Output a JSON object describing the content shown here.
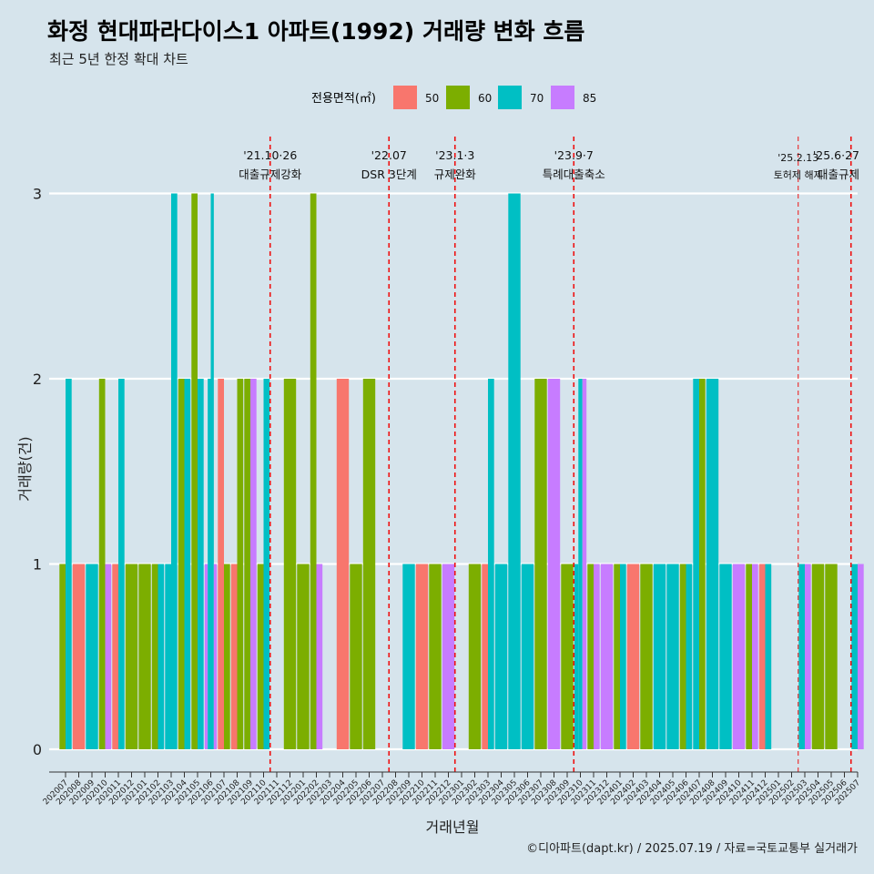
{
  "chart_data": {
    "type": "bar",
    "title": "화정 현대파라다이스1 아파트(1992) 거래량 변화 흐름",
    "subtitle": "최근 5년 한정 확대 차트",
    "xlabel": "거래년월",
    "ylabel": "거래량(건)",
    "caption": "©디아파트(dapt.kr) / 2025.07.19 / 자료=국토교통부 실거래가",
    "legend_title": "전용면적(㎡)",
    "legend_position": "top",
    "ylim": [
      0,
      3
    ],
    "y_ticks": [
      0,
      1,
      2,
      3
    ],
    "areas": [
      "50",
      "60",
      "70",
      "85"
    ],
    "colors": {
      "50": "#f8766d",
      "60": "#7cae00",
      "70": "#00bfc4",
      "85": "#c77cff"
    },
    "months": [
      "202007",
      "202008",
      "202009",
      "202010",
      "202011",
      "202012",
      "202101",
      "202102",
      "202103",
      "202104",
      "202105",
      "202106",
      "202107",
      "202108",
      "202109",
      "202110",
      "202111",
      "202112",
      "202201",
      "202202",
      "202203",
      "202204",
      "202205",
      "202206",
      "202207",
      "202208",
      "202209",
      "202210",
      "202211",
      "202212",
      "202301",
      "202302",
      "202303",
      "202304",
      "202305",
      "202306",
      "202307",
      "202308",
      "202309",
      "202310",
      "202311",
      "202312",
      "202401",
      "202402",
      "202403",
      "202404",
      "202405",
      "202406",
      "202407",
      "202408",
      "202409",
      "202410",
      "202411",
      "202412",
      "202501",
      "202502",
      "202503",
      "202504",
      "202505",
      "202506",
      "202507"
    ],
    "series": [
      {
        "month": "202007",
        "bars": [
          {
            "area": "60",
            "count": 1
          },
          {
            "area": "70",
            "count": 2
          }
        ]
      },
      {
        "month": "202008",
        "bars": [
          {
            "area": "50",
            "count": 1
          }
        ]
      },
      {
        "month": "202009",
        "bars": [
          {
            "area": "70",
            "count": 1
          }
        ]
      },
      {
        "month": "202010",
        "bars": [
          {
            "area": "60",
            "count": 2
          },
          {
            "area": "85",
            "count": 1
          }
        ]
      },
      {
        "month": "202011",
        "bars": [
          {
            "area": "50",
            "count": 1
          },
          {
            "area": "70",
            "count": 2
          }
        ]
      },
      {
        "month": "202012",
        "bars": [
          {
            "area": "60",
            "count": 1
          }
        ]
      },
      {
        "month": "202101",
        "bars": [
          {
            "area": "60",
            "count": 1
          }
        ]
      },
      {
        "month": "202102",
        "bars": [
          {
            "area": "60",
            "count": 1
          },
          {
            "area": "70",
            "count": 1
          }
        ]
      },
      {
        "month": "202103",
        "bars": [
          {
            "area": "70",
            "count": 1
          },
          {
            "area": "70",
            "count": 3
          }
        ]
      },
      {
        "month": "202104",
        "bars": [
          {
            "area": "60",
            "count": 2
          },
          {
            "area": "70",
            "count": 2
          }
        ]
      },
      {
        "month": "202105",
        "bars": [
          {
            "area": "60",
            "count": 3
          },
          {
            "area": "70",
            "count": 2
          }
        ]
      },
      {
        "month": "202106",
        "bars": [
          {
            "area": "85",
            "count": 1
          },
          {
            "area": "70",
            "count": 2
          },
          {
            "area": "70",
            "count": 3
          },
          {
            "area": "85",
            "count": 1
          }
        ]
      },
      {
        "month": "202107",
        "bars": [
          {
            "area": "50",
            "count": 2
          },
          {
            "area": "60",
            "count": 1
          }
        ]
      },
      {
        "month": "202108",
        "bars": [
          {
            "area": "50",
            "count": 1
          },
          {
            "area": "60",
            "count": 2
          }
        ]
      },
      {
        "month": "202109",
        "bars": [
          {
            "area": "60",
            "count": 2
          },
          {
            "area": "85",
            "count": 2
          }
        ]
      },
      {
        "month": "202110",
        "bars": [
          {
            "area": "60",
            "count": 1
          },
          {
            "area": "70",
            "count": 2
          }
        ]
      },
      {
        "month": "202111",
        "bars": []
      },
      {
        "month": "202112",
        "bars": [
          {
            "area": "60",
            "count": 2
          }
        ]
      },
      {
        "month": "202201",
        "bars": [
          {
            "area": "60",
            "count": 1
          }
        ]
      },
      {
        "month": "202202",
        "bars": [
          {
            "area": "60",
            "count": 3
          },
          {
            "area": "85",
            "count": 1
          }
        ]
      },
      {
        "month": "202203",
        "bars": []
      },
      {
        "month": "202204",
        "bars": [
          {
            "area": "50",
            "count": 2
          }
        ]
      },
      {
        "month": "202205",
        "bars": [
          {
            "area": "60",
            "count": 1
          }
        ]
      },
      {
        "month": "202206",
        "bars": [
          {
            "area": "60",
            "count": 2
          }
        ]
      },
      {
        "month": "202207",
        "bars": []
      },
      {
        "month": "202208",
        "bars": []
      },
      {
        "month": "202209",
        "bars": [
          {
            "area": "70",
            "count": 1
          }
        ]
      },
      {
        "month": "202210",
        "bars": [
          {
            "area": "50",
            "count": 1
          }
        ]
      },
      {
        "month": "202211",
        "bars": [
          {
            "area": "60",
            "count": 1
          }
        ]
      },
      {
        "month": "202212",
        "bars": [
          {
            "area": "85",
            "count": 1
          }
        ]
      },
      {
        "month": "202301",
        "bars": []
      },
      {
        "month": "202302",
        "bars": [
          {
            "area": "60",
            "count": 1
          }
        ]
      },
      {
        "month": "202303",
        "bars": [
          {
            "area": "50",
            "count": 1
          },
          {
            "area": "70",
            "count": 2
          }
        ]
      },
      {
        "month": "202304",
        "bars": [
          {
            "area": "70",
            "count": 1
          }
        ]
      },
      {
        "month": "202305",
        "bars": [
          {
            "area": "70",
            "count": 3
          }
        ]
      },
      {
        "month": "202306",
        "bars": [
          {
            "area": "70",
            "count": 1
          }
        ]
      },
      {
        "month": "202307",
        "bars": [
          {
            "area": "60",
            "count": 2
          }
        ]
      },
      {
        "month": "202308",
        "bars": [
          {
            "area": "85",
            "count": 2
          }
        ]
      },
      {
        "month": "202309",
        "bars": [
          {
            "area": "60",
            "count": 1
          }
        ]
      },
      {
        "month": "202310",
        "bars": [
          {
            "area": "70",
            "count": 1
          },
          {
            "area": "70",
            "count": 2
          },
          {
            "area": "85",
            "count": 2
          }
        ]
      },
      {
        "month": "202311",
        "bars": [
          {
            "area": "60",
            "count": 1
          },
          {
            "area": "85",
            "count": 1
          }
        ]
      },
      {
        "month": "202312",
        "bars": [
          {
            "area": "85",
            "count": 1
          }
        ]
      },
      {
        "month": "202401",
        "bars": [
          {
            "area": "60",
            "count": 1
          },
          {
            "area": "70",
            "count": 1
          }
        ]
      },
      {
        "month": "202402",
        "bars": [
          {
            "area": "50",
            "count": 1
          }
        ]
      },
      {
        "month": "202403",
        "bars": [
          {
            "area": "60",
            "count": 1
          }
        ]
      },
      {
        "month": "202404",
        "bars": [
          {
            "area": "70",
            "count": 1
          }
        ]
      },
      {
        "month": "202405",
        "bars": [
          {
            "area": "70",
            "count": 1
          }
        ]
      },
      {
        "month": "202406",
        "bars": [
          {
            "area": "60",
            "count": 1
          },
          {
            "area": "70",
            "count": 1
          }
        ]
      },
      {
        "month": "202407",
        "bars": [
          {
            "area": "70",
            "count": 2
          },
          {
            "area": "60",
            "count": 2
          }
        ]
      },
      {
        "month": "202408",
        "bars": [
          {
            "area": "70",
            "count": 2
          }
        ]
      },
      {
        "month": "202409",
        "bars": [
          {
            "area": "70",
            "count": 1
          }
        ]
      },
      {
        "month": "202410",
        "bars": [
          {
            "area": "85",
            "count": 1
          }
        ]
      },
      {
        "month": "202411",
        "bars": [
          {
            "area": "60",
            "count": 1
          },
          {
            "area": "85",
            "count": 1
          }
        ]
      },
      {
        "month": "202412",
        "bars": [
          {
            "area": "50",
            "count": 1
          },
          {
            "area": "70",
            "count": 1
          }
        ]
      },
      {
        "month": "202501",
        "bars": []
      },
      {
        "month": "202502",
        "bars": []
      },
      {
        "month": "202503",
        "bars": [
          {
            "area": "70",
            "count": 1
          },
          {
            "area": "85",
            "count": 1
          }
        ]
      },
      {
        "month": "202504",
        "bars": [
          {
            "area": "60",
            "count": 1
          }
        ]
      },
      {
        "month": "202505",
        "bars": [
          {
            "area": "60",
            "count": 1
          }
        ]
      },
      {
        "month": "202506",
        "bars": []
      },
      {
        "month": "202507",
        "bars": [
          {
            "area": "70",
            "count": 1
          },
          {
            "area": "85",
            "count": 1
          }
        ]
      }
    ],
    "events": [
      {
        "month": "202110",
        "label_top": "'21.10·26",
        "label_bottom": "대출규제강화",
        "style": "dashed"
      },
      {
        "month": "202207",
        "label_top": "'22.07",
        "label_bottom": "DSR 3단계",
        "style": "dashed"
      },
      {
        "month": "202212",
        "label_top": "'23.1·3",
        "label_bottom": "규제완화",
        "style": "dashed"
      },
      {
        "month": "202309",
        "label_top": "'23.9·7",
        "label_bottom": "특례대출축소",
        "style": "dashed"
      },
      {
        "month": "202502",
        "label_top": "'25.2.13",
        "label_bottom": "토허제 해제",
        "style": "thin"
      },
      {
        "month": "202506",
        "label_top": "'25.6·27",
        "label_bottom": "대출규제",
        "style": "dashed"
      }
    ]
  }
}
